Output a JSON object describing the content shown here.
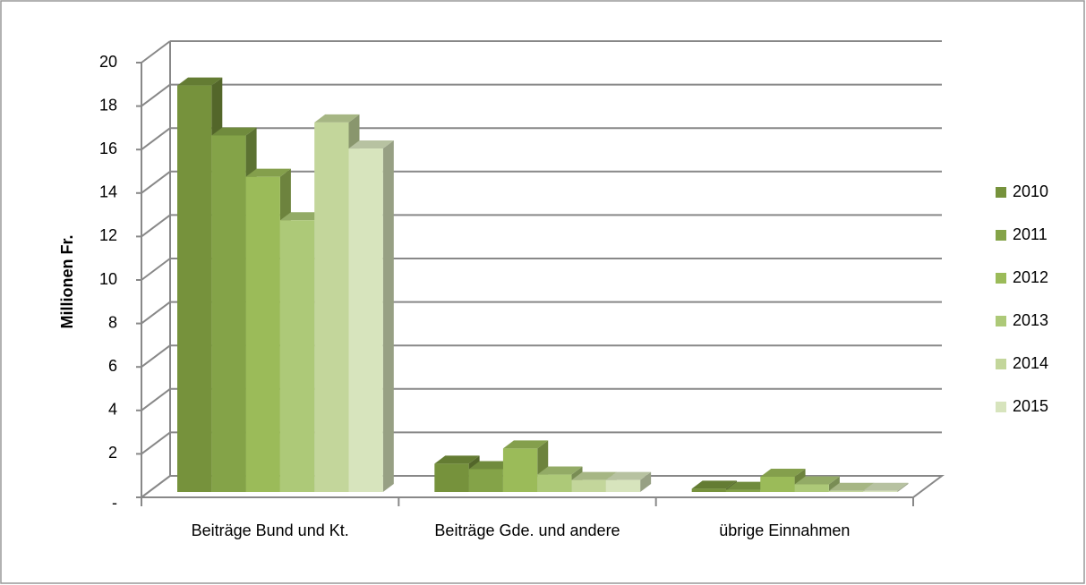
{
  "chart_data": {
    "type": "bar3d",
    "y_label": "Millionen Fr.",
    "categories": [
      "Beiträge Bund und Kt.",
      "Beiträge Gde. und andere",
      "übrige Einnahmen"
    ],
    "series": [
      {
        "name": "2010",
        "color": "#76923c",
        "values": [
          18.7,
          1.3,
          0.15
        ]
      },
      {
        "name": "2011",
        "color": "#84a348",
        "values": [
          16.4,
          1.05,
          0.1
        ]
      },
      {
        "name": "2012",
        "color": "#9bbb59",
        "values": [
          14.5,
          2.0,
          0.7
        ]
      },
      {
        "name": "2013",
        "color": "#adc978",
        "values": [
          12.5,
          0.8,
          0.35
        ]
      },
      {
        "name": "2014",
        "color": "#c3d69b",
        "values": [
          17.0,
          0.55,
          0.05
        ]
      },
      {
        "name": "2015",
        "color": "#d7e4bd",
        "values": [
          15.8,
          0.55,
          0.05
        ]
      }
    ],
    "ylim": [
      0,
      20
    ],
    "yticks": [
      {
        "value": 0,
        "label": "-"
      },
      2,
      4,
      6,
      8,
      10,
      12,
      14,
      16,
      18,
      20
    ],
    "grid": true,
    "legend": "right"
  }
}
